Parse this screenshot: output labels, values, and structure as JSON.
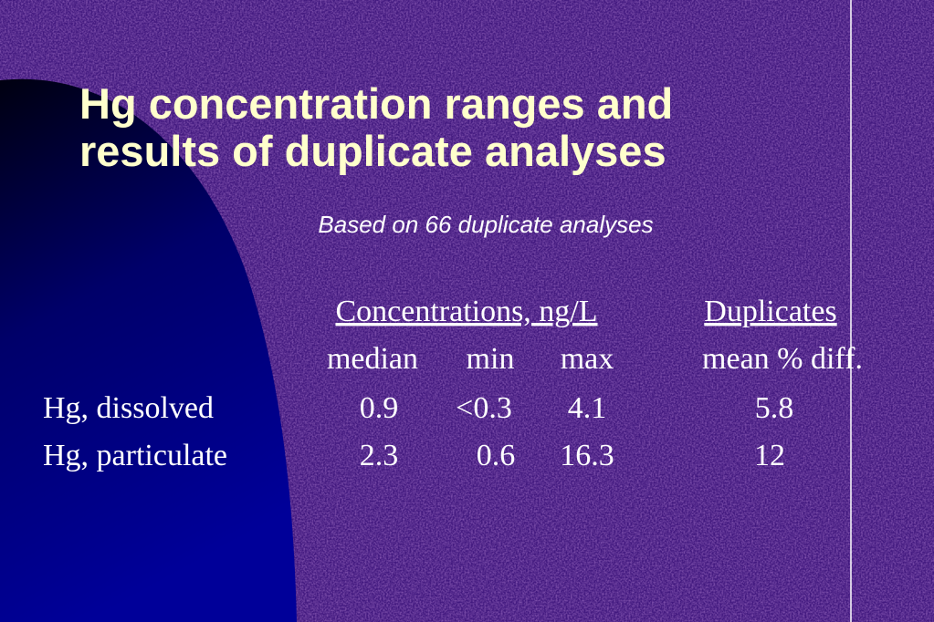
{
  "slide": {
    "title": [
      "Hg concentration ranges and",
      "results of duplicate analyses"
    ],
    "subtitle": "Based on 66 duplicate analyses",
    "table": {
      "group_headers": [
        "Concentrations, ng/L",
        "Duplicates"
      ],
      "columns": [
        "median",
        "min",
        "max",
        "mean % diff."
      ],
      "rows": [
        [
          "Hg, dissolved",
          "0.9",
          "<0.3",
          "4.1",
          "5.8"
        ],
        [
          "Hg, particulate",
          "2.3",
          "0.6",
          "16.3",
          "12"
        ]
      ]
    }
  }
}
